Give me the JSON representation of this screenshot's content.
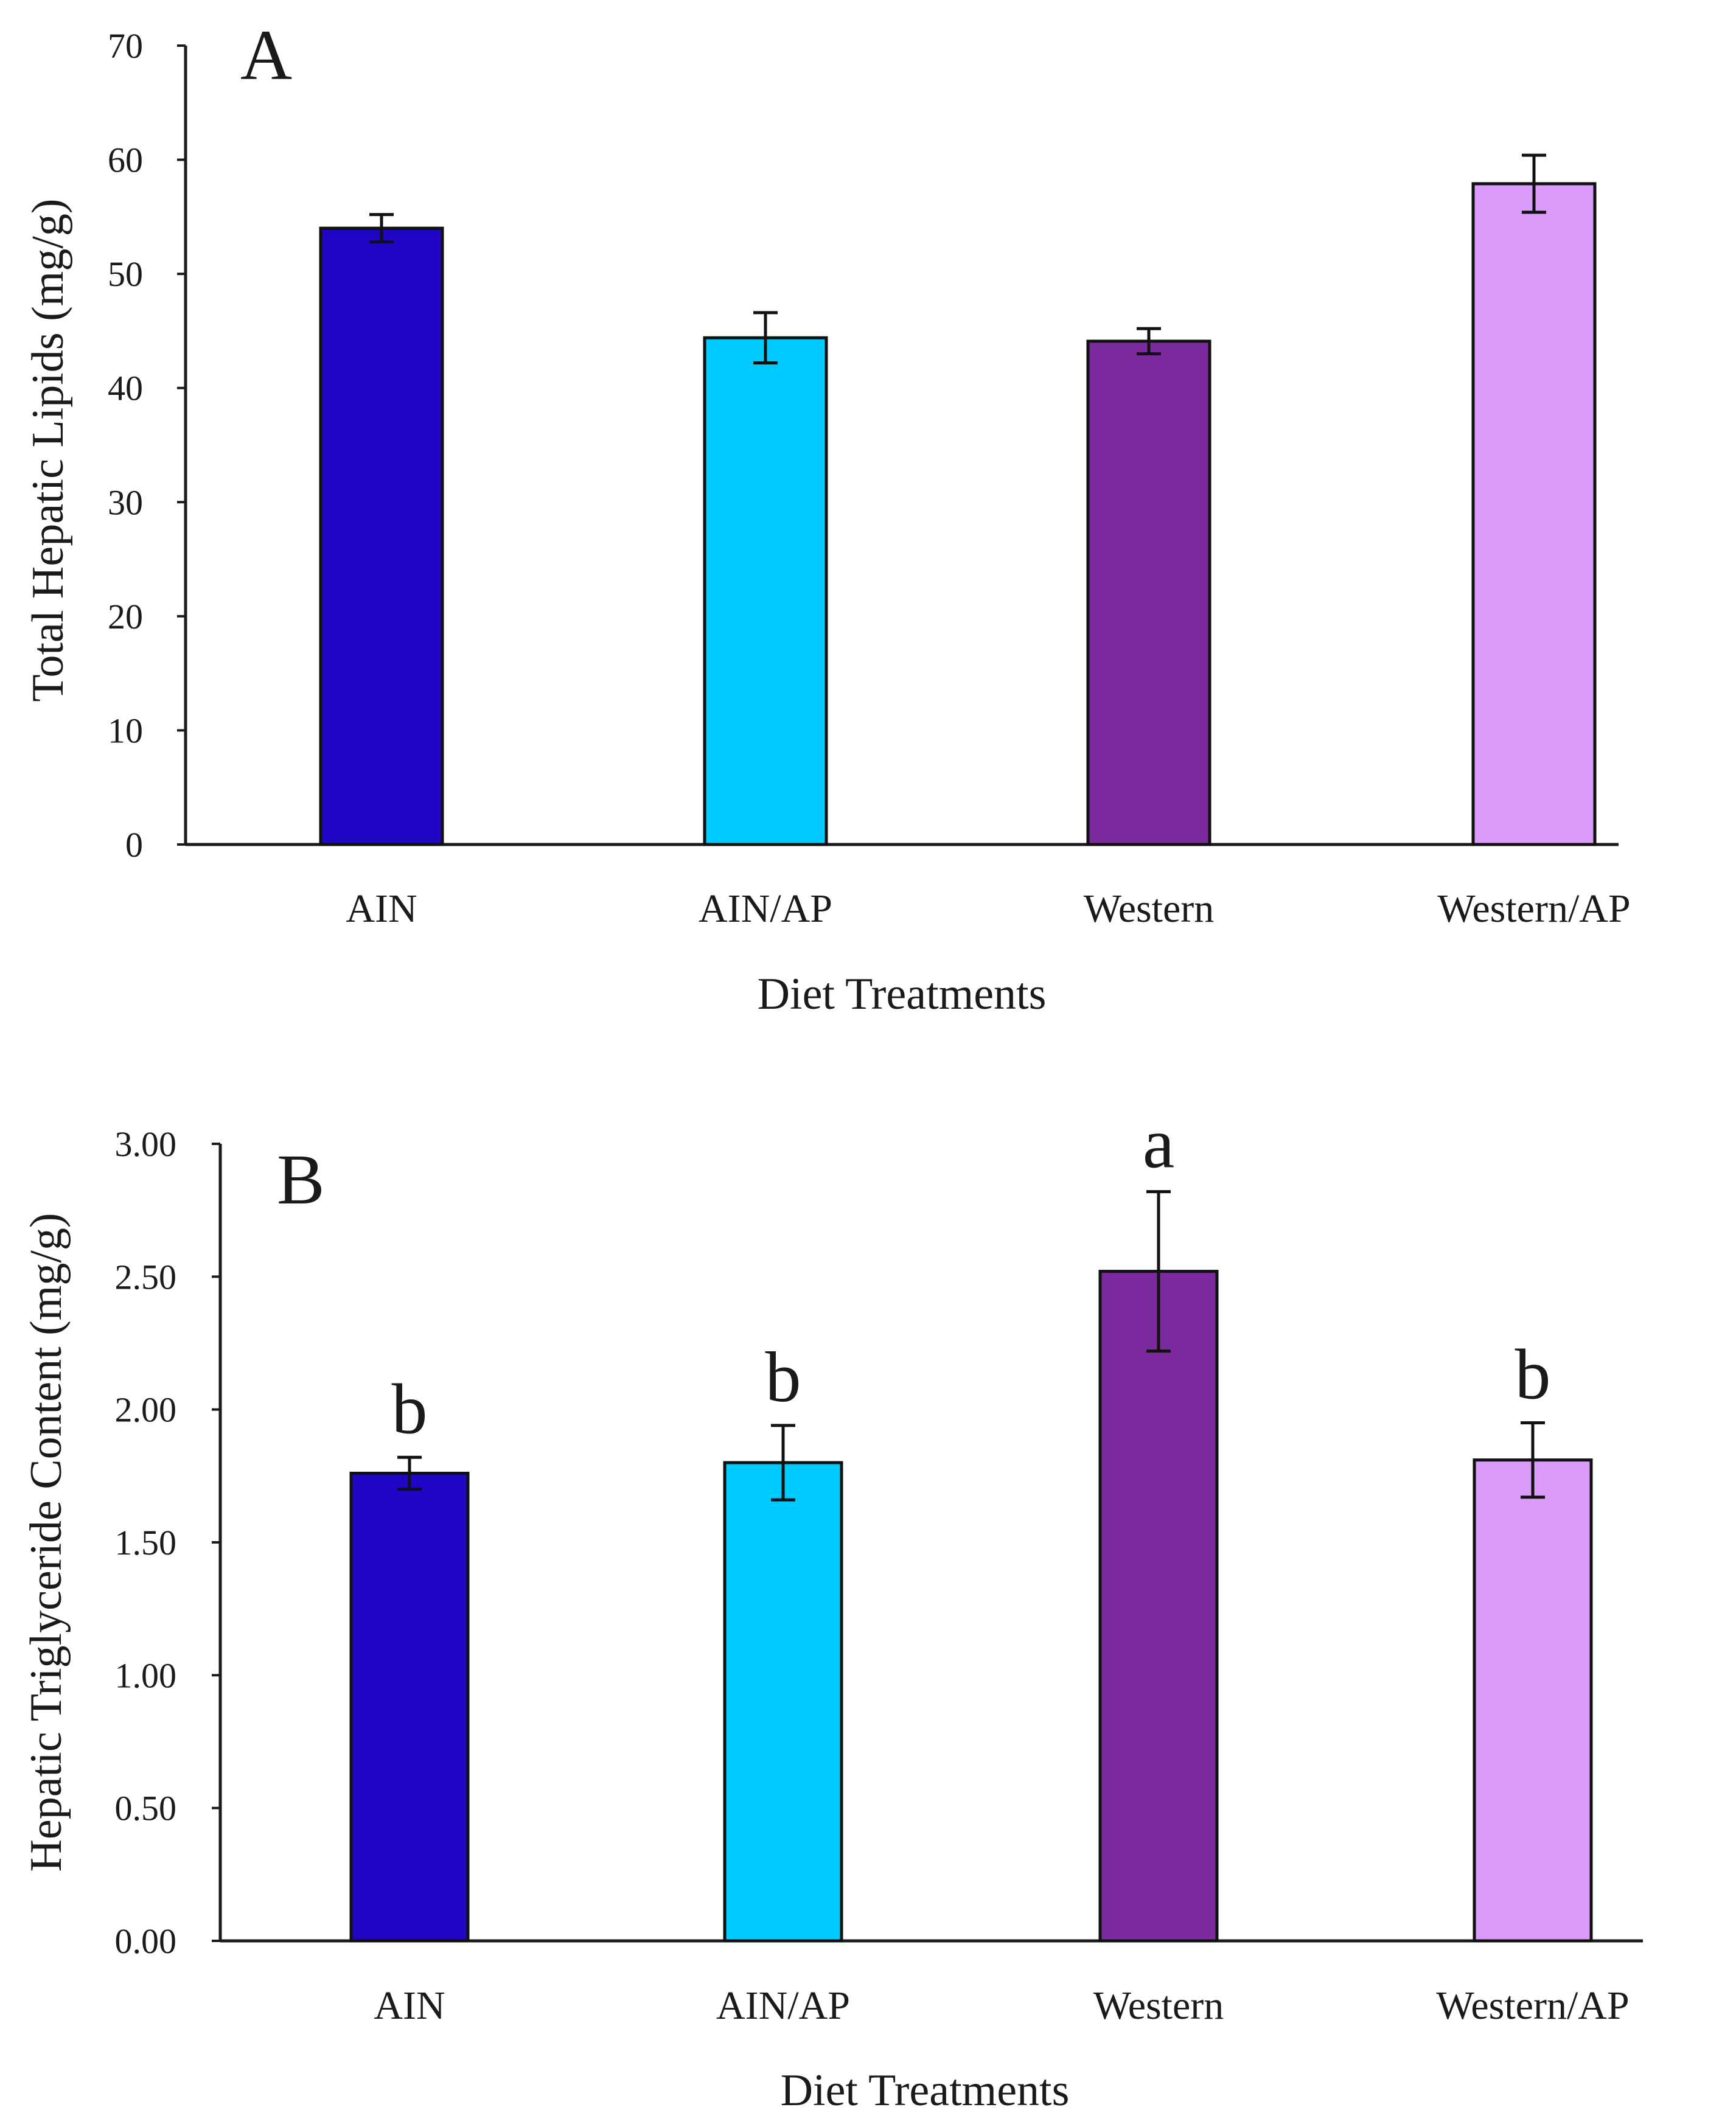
{
  "chart_data": [
    {
      "type": "bar",
      "panel_label": "A",
      "categories": [
        "AIN",
        "AIN/AP",
        "Western",
        "Western/AP"
      ],
      "values": [
        54.0,
        44.4,
        44.1,
        57.9
      ],
      "errors": [
        1.2,
        2.2,
        1.1,
        2.5
      ],
      "colors": [
        "#1f06c4",
        "#00cbff",
        "#7b2b9e",
        "#da9bfb"
      ],
      "xlabel": "Diet Treatments",
      "ylabel": "Total Hepatic Lipids (mg/g)",
      "ylim": [
        0,
        70
      ],
      "yticks": [
        0,
        10,
        20,
        30,
        40,
        50,
        60,
        70
      ],
      "ytick_labels": [
        "0",
        "10",
        "20",
        "30",
        "40",
        "50",
        "60",
        "70"
      ],
      "annotations": [
        "",
        "",
        "",
        ""
      ],
      "grid": false
    },
    {
      "type": "bar",
      "panel_label": "B",
      "categories": [
        "AIN",
        "AIN/AP",
        "Western",
        "Western/AP"
      ],
      "values": [
        1.76,
        1.8,
        2.52,
        1.81
      ],
      "errors": [
        0.06,
        0.14,
        0.3,
        0.14
      ],
      "colors": [
        "#1f06c4",
        "#00cbff",
        "#7b2b9e",
        "#da9bfb"
      ],
      "xlabel": "Diet Treatments",
      "ylabel": "Hepatic Triglyceride Content (mg/g)",
      "ylim": [
        0,
        3.0
      ],
      "yticks": [
        0,
        0.5,
        1.0,
        1.5,
        2.0,
        2.5,
        3.0
      ],
      "ytick_labels": [
        "0.00",
        "0.50",
        "1.00",
        "1.50",
        "2.00",
        "2.50",
        "3.00"
      ],
      "annotations": [
        "b",
        "b",
        "a",
        "b"
      ],
      "grid": false
    }
  ]
}
